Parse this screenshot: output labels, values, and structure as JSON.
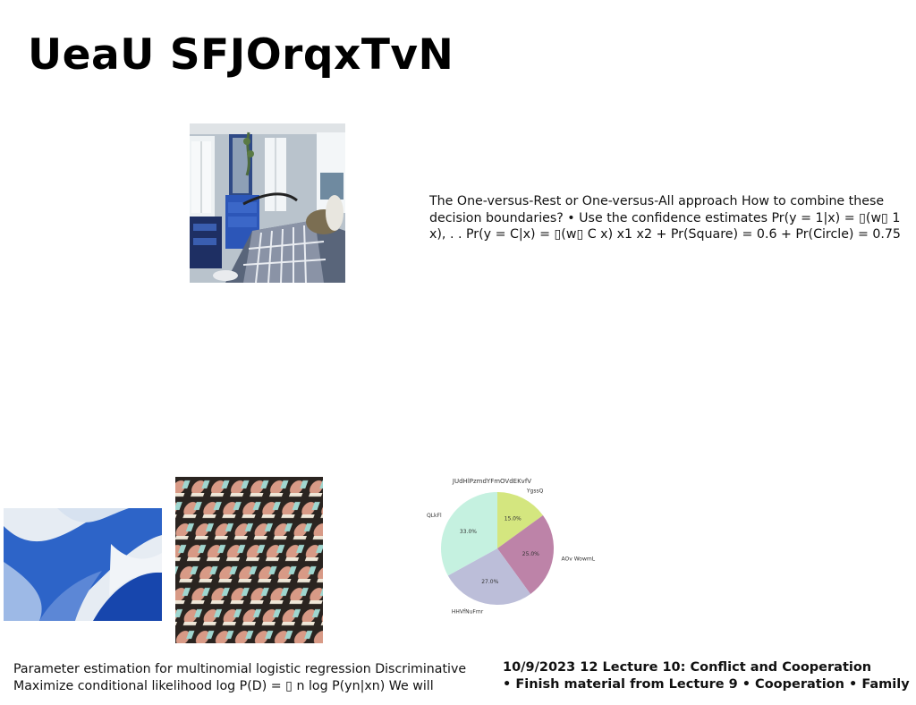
{
  "slide": {
    "title": "UeaU SFJOrqxTvN",
    "body_text": "The One-versus-Rest or One-versus-All approach How to combine these decision boundaries? • Use the confidence estimates Pr(y = 1|x) = ▯(w▯ 1 x), . . Pr(y = C|x) = ▯(w▯ C x) x1 x2 + Pr(Square) = 0.6 + Pr(Circle) = 0.75",
    "bottom_left_text": "Parameter estimation for multinomial logistic regression Discriminative Maximize conditional likelihood log P(D) = ▯ n log P(yn|xn) We will",
    "bottom_right_line1": "10/9/2023 12 Lecture 10: Conflict and Cooperation",
    "bottom_right_line2": "• Finish material from Lecture 9 • Cooperation • Family"
  },
  "images": {
    "bedroom": "bedroom-photo",
    "abstract": "blue-abstract-wave",
    "pattern": "repeating-figures-pattern"
  },
  "chart_data": {
    "type": "pie",
    "title": "JUdHlPzmdYFmOVdEKvfV",
    "labels": [
      "YgssQ",
      "AOv WowmL",
      "HHVfNuFmr",
      "QLkFl"
    ],
    "values": [
      15.0,
      25.0,
      27.0,
      33.0
    ],
    "value_labels": [
      "15.0%",
      "25.0%",
      "27.0%",
      "33.0%"
    ],
    "colors": [
      "#d4e67f",
      "#bd83a8",
      "#bcbed9",
      "#c5f1e0"
    ],
    "start_angle_deg": 90,
    "direction": "clockwise"
  }
}
